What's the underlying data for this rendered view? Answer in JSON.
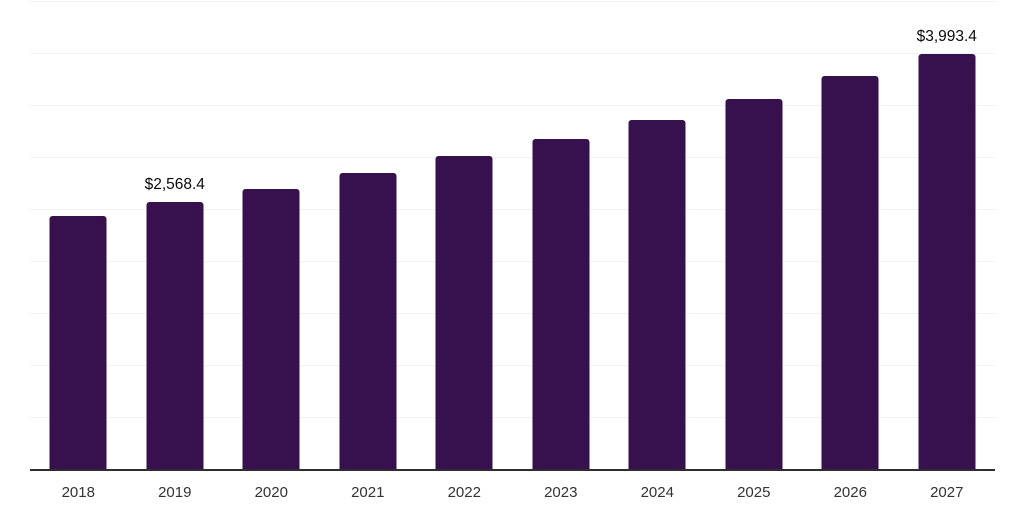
{
  "chart_data": {
    "type": "bar",
    "categories": [
      "2018",
      "2019",
      "2020",
      "2021",
      "2022",
      "2023",
      "2024",
      "2025",
      "2026",
      "2027"
    ],
    "values": [
      2436.0,
      2568.4,
      2695.0,
      2843.0,
      3009.0,
      3172.0,
      3352.0,
      3556.0,
      3780.0,
      3993.4
    ],
    "data_labels": [
      null,
      "$2,568.4",
      null,
      null,
      null,
      null,
      null,
      null,
      null,
      "$3,993.4"
    ],
    "title": "",
    "xlabel": "",
    "ylabel": "",
    "ylim": [
      0,
      4500
    ],
    "gridline_step": 500,
    "grid": true,
    "legend": false,
    "colors": {
      "bar": "#36114E",
      "gridline": "#F2F2F2",
      "axis_line": "#2E2E2E",
      "tick_label": "#333333",
      "data_label": "#0A0A0A",
      "background": "#FFFFFF"
    }
  }
}
